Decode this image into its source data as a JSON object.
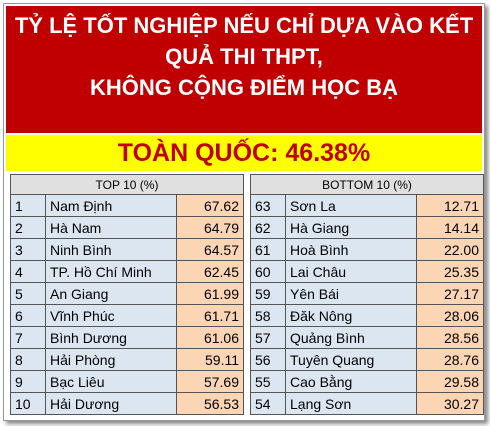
{
  "header": {
    "title_lines": [
      "TỶ LỆ TỐT NGHIỆP NẾU CHỈ DỰA VÀO KẾT",
      "QUẢ THI THPT,",
      "KHÔNG CỘNG ĐIỂM HỌC BẠ"
    ],
    "subtitle": "TOÀN QUỐC: 46.38%"
  },
  "tables": [
    {
      "title": "TOP 10 (%)",
      "rows": [
        [
          "1",
          "Nam Định",
          "67.62"
        ],
        [
          "2",
          "Hà Nam",
          "64.79"
        ],
        [
          "3",
          "Ninh Bình",
          "64.57"
        ],
        [
          "4",
          "TP. Hồ Chí Minh",
          "62.45"
        ],
        [
          "5",
          "An Giang",
          "61.99"
        ],
        [
          "6",
          "Vĩnh Phúc",
          "61.71"
        ],
        [
          "7",
          "Bình Dương",
          "61.06"
        ],
        [
          "8",
          "Hải Phòng",
          "59.11"
        ],
        [
          "9",
          "Bạc Liêu",
          "57.69"
        ],
        [
          "10",
          "Hải Dương",
          "56.53"
        ]
      ]
    },
    {
      "title": "BOTTOM 10 (%)",
      "rows": [
        [
          "63",
          "Sơn La",
          "12.71"
        ],
        [
          "62",
          "Hà Giang",
          "14.14"
        ],
        [
          "61",
          "Hoà Bình",
          "22.00"
        ],
        [
          "60",
          "Lai Châu",
          "25.35"
        ],
        [
          "59",
          "Yên Bái",
          "27.17"
        ],
        [
          "58",
          "Đăk Nông",
          "28.06"
        ],
        [
          "57",
          "Quảng Bình",
          "28.56"
        ],
        [
          "56",
          "Tuyên Quang",
          "28.76"
        ],
        [
          "55",
          "Cao Bằng",
          "29.58"
        ],
        [
          "54",
          "Lạng Sơn",
          "30.27"
        ]
      ]
    }
  ]
}
